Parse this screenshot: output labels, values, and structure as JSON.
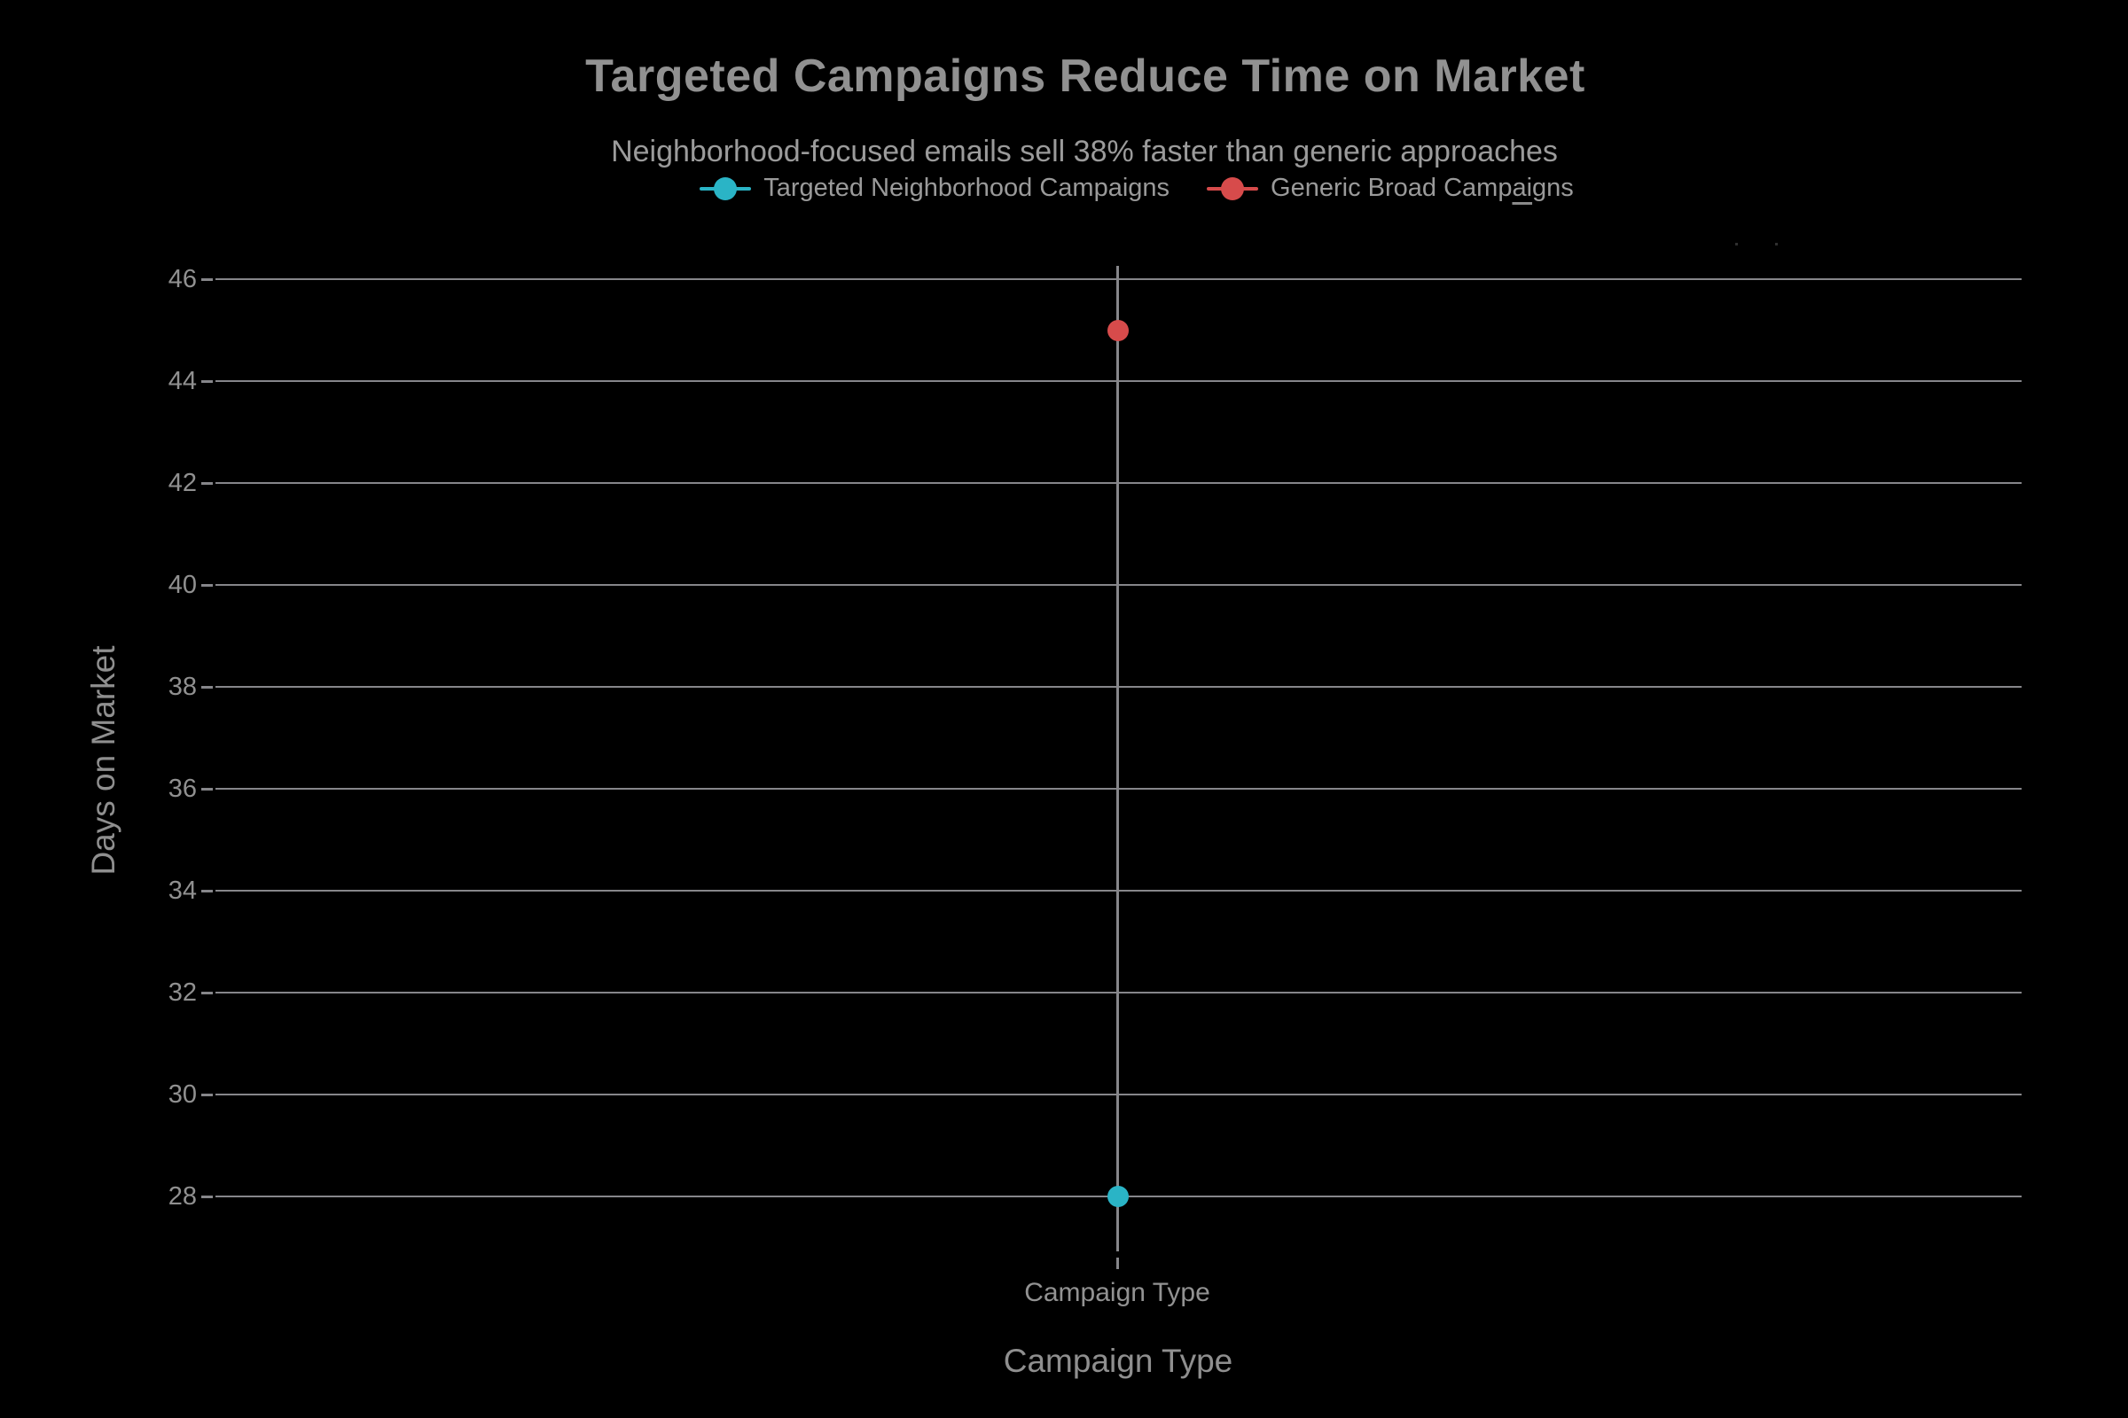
{
  "header": {
    "title": "Targeted Campaigns Reduce Time on Market",
    "subtitle": "Neighborhood-focused emails sell 38% faster than generic approaches"
  },
  "legend": {
    "items": [
      {
        "label": "Targeted Neighborhood Campaigns",
        "color": "#2ab4c6"
      },
      {
        "label": "Generic Broad Campaigns",
        "color": "#d74b4b",
        "label_parts": {
          "pre": "Generic Broad Camp",
          "underlined": "ai",
          "post": "gns"
        }
      }
    ]
  },
  "axes": {
    "y_title": "Days on Market",
    "x_title": "Campaign Type",
    "x_tick_label": "Campaign Type"
  },
  "chart_data": {
    "type": "scatter",
    "categories": [
      "Campaign Type"
    ],
    "series": [
      {
        "name": "Targeted Neighborhood Campaigns",
        "values": [
          28
        ],
        "color": "#2ab4c6"
      },
      {
        "name": "Generic Broad Campaigns",
        "values": [
          45
        ],
        "color": "#d74b4b"
      }
    ],
    "title": "Targeted Campaigns Reduce Time on Market",
    "subtitle": "Neighborhood-focused emails sell 38% faster than generic approaches",
    "xlabel": "Campaign Type",
    "ylabel": "Days on Market",
    "yticks": [
      28,
      30,
      32,
      34,
      36,
      38,
      40,
      42,
      44,
      46
    ],
    "ylim": [
      26.7,
      46.3
    ],
    "grid": true,
    "legend_position": "top-center",
    "colors": {
      "background": "#000000",
      "grid": "#86868a",
      "tick_text": "#909090",
      "title_text": "#919191"
    }
  }
}
